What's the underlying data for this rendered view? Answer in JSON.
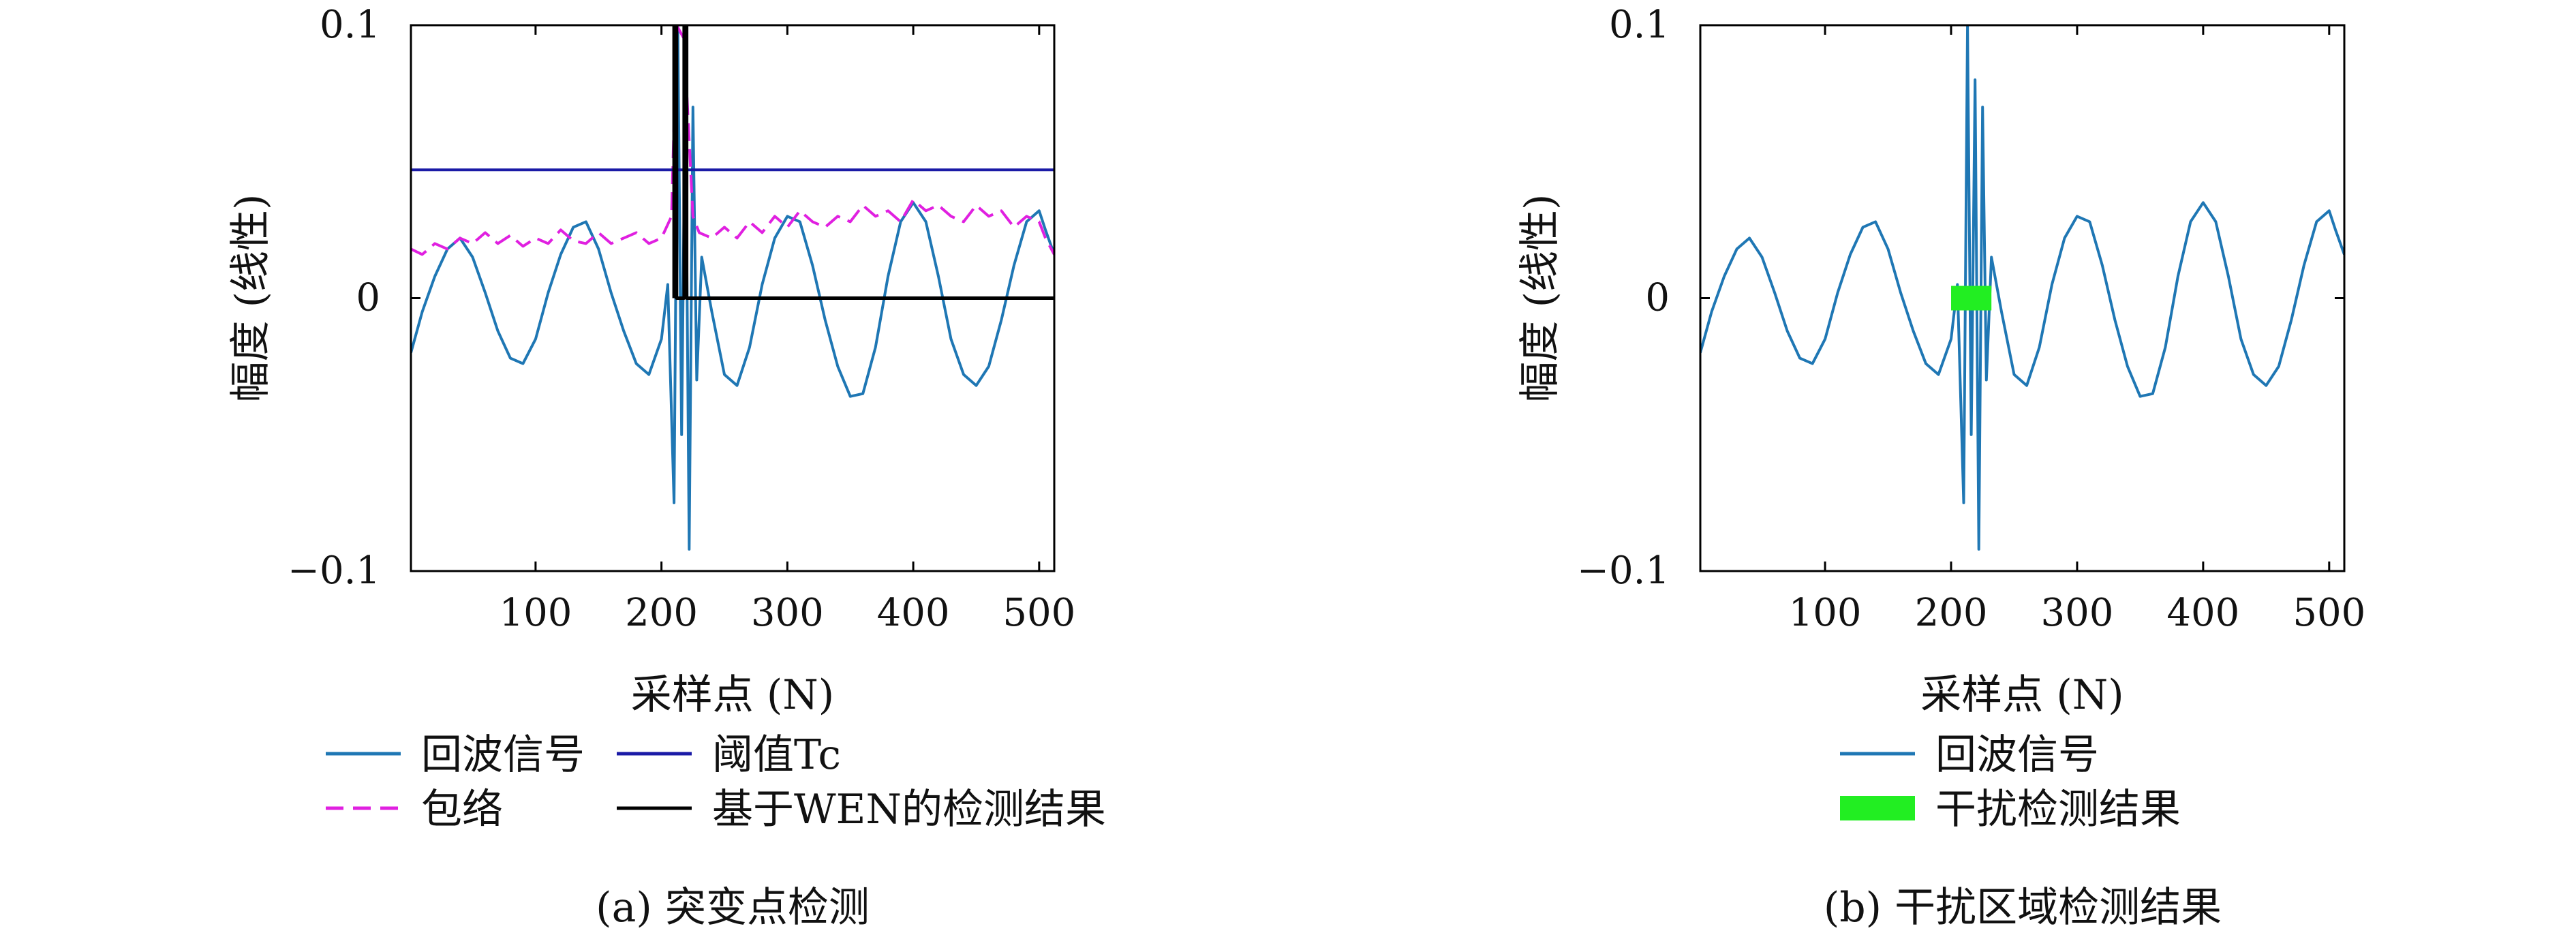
{
  "colors": {
    "signal": "#1f77b4",
    "threshold": "#1a1aa6",
    "envelope": "#e020e0",
    "detection": "#000000",
    "interference": "#22ee22"
  },
  "chart_data": [
    {
      "type": "line",
      "caption": "(a) 突变点检测",
      "xlabel": "采样点 (N)",
      "ylabel": "幅度 (线性)",
      "xlim": [
        1,
        512
      ],
      "ylim": [
        -0.1,
        0.1
      ],
      "xticks": [
        100,
        200,
        300,
        400,
        500
      ],
      "yticks": [
        -0.1,
        0,
        0.1
      ],
      "ytick_labels": [
        "−0.1",
        "0",
        "0.1"
      ],
      "legend_columns": 2,
      "series": [
        {
          "name": "回波信号",
          "style": "solid",
          "x": [
            1,
            10,
            20,
            30,
            40,
            50,
            60,
            70,
            80,
            90,
            100,
            110,
            120,
            130,
            140,
            150,
            160,
            170,
            180,
            190,
            200,
            205,
            210,
            213,
            216,
            219,
            222,
            225,
            228,
            232,
            240,
            250,
            260,
            270,
            280,
            290,
            300,
            310,
            320,
            330,
            340,
            350,
            360,
            370,
            380,
            390,
            400,
            410,
            420,
            430,
            440,
            450,
            460,
            470,
            480,
            490,
            500,
            505,
            512
          ],
          "y": [
            -0.02,
            -0.005,
            0.008,
            0.018,
            0.022,
            0.015,
            0.002,
            -0.012,
            -0.022,
            -0.024,
            -0.015,
            0.002,
            0.016,
            0.026,
            0.028,
            0.018,
            0.002,
            -0.012,
            -0.024,
            -0.028,
            -0.015,
            0.005,
            -0.075,
            0.1,
            -0.05,
            0.08,
            -0.092,
            0.07,
            -0.03,
            0.015,
            -0.005,
            -0.028,
            -0.032,
            -0.018,
            0.005,
            0.022,
            0.03,
            0.028,
            0.012,
            -0.008,
            -0.025,
            -0.036,
            -0.035,
            -0.018,
            0.008,
            0.028,
            0.035,
            0.028,
            0.008,
            -0.015,
            -0.028,
            -0.032,
            -0.025,
            -0.008,
            0.012,
            0.028,
            0.032,
            0.025,
            0.016
          ]
        },
        {
          "name": "包络",
          "style": "dashed",
          "x": [
            1,
            10,
            20,
            30,
            40,
            50,
            60,
            70,
            80,
            90,
            100,
            110,
            120,
            130,
            140,
            150,
            160,
            170,
            180,
            190,
            200,
            208,
            212,
            218,
            225,
            230,
            240,
            250,
            260,
            270,
            280,
            290,
            300,
            310,
            320,
            330,
            340,
            350,
            360,
            370,
            380,
            390,
            400,
            410,
            420,
            430,
            440,
            450,
            460,
            470,
            480,
            490,
            500,
            505,
            512
          ],
          "y": [
            0.018,
            0.016,
            0.02,
            0.018,
            0.022,
            0.02,
            0.024,
            0.02,
            0.023,
            0.019,
            0.022,
            0.02,
            0.025,
            0.021,
            0.02,
            0.024,
            0.02,
            0.022,
            0.024,
            0.02,
            0.022,
            0.03,
            0.1,
            0.095,
            0.03,
            0.024,
            0.022,
            0.026,
            0.022,
            0.028,
            0.024,
            0.03,
            0.026,
            0.032,
            0.028,
            0.026,
            0.03,
            0.028,
            0.034,
            0.03,
            0.032,
            0.028,
            0.036,
            0.032,
            0.034,
            0.03,
            0.028,
            0.034,
            0.03,
            0.032,
            0.026,
            0.03,
            0.028,
            0.022,
            0.016
          ]
        },
        {
          "name": "阈值Tc",
          "style": "solid",
          "x": [
            1,
            512
          ],
          "y": [
            0.047,
            0.047
          ]
        },
        {
          "name": "基于WEN的检测结果",
          "style": "solid",
          "x": [
            210,
            210,
            212,
            212,
            218,
            218,
            220,
            220,
            222,
            222,
            512
          ],
          "y": [
            0,
            0.1,
            0.1,
            0,
            0,
            0.1,
            0.1,
            0,
            0,
            0,
            0
          ]
        }
      ]
    },
    {
      "type": "line",
      "caption": "(b) 干扰区域检测结果",
      "xlabel": "采样点 (N)",
      "ylabel": "幅度 (线性)",
      "xlim": [
        1,
        512
      ],
      "ylim": [
        -0.1,
        0.1
      ],
      "xticks": [
        100,
        200,
        300,
        400,
        500
      ],
      "yticks": [
        -0.1,
        0,
        0.1
      ],
      "ytick_labels": [
        "−0.1",
        "0",
        "0.1"
      ],
      "legend_columns": 1,
      "series": [
        {
          "name": "回波信号",
          "style": "solid",
          "x": [
            1,
            10,
            20,
            30,
            40,
            50,
            60,
            70,
            80,
            90,
            100,
            110,
            120,
            130,
            140,
            150,
            160,
            170,
            180,
            190,
            200,
            205,
            210,
            213,
            216,
            219,
            222,
            225,
            228,
            232,
            240,
            250,
            260,
            270,
            280,
            290,
            300,
            310,
            320,
            330,
            340,
            350,
            360,
            370,
            380,
            390,
            400,
            410,
            420,
            430,
            440,
            450,
            460,
            470,
            480,
            490,
            500,
            505,
            512
          ],
          "y": [
            -0.02,
            -0.005,
            0.008,
            0.018,
            0.022,
            0.015,
            0.002,
            -0.012,
            -0.022,
            -0.024,
            -0.015,
            0.002,
            0.016,
            0.026,
            0.028,
            0.018,
            0.002,
            -0.012,
            -0.024,
            -0.028,
            -0.015,
            0.005,
            -0.075,
            0.1,
            -0.05,
            0.08,
            -0.092,
            0.07,
            -0.03,
            0.015,
            -0.005,
            -0.028,
            -0.032,
            -0.018,
            0.005,
            0.022,
            0.03,
            0.028,
            0.012,
            -0.008,
            -0.025,
            -0.036,
            -0.035,
            -0.018,
            0.008,
            0.028,
            0.035,
            0.028,
            0.008,
            -0.015,
            -0.028,
            -0.032,
            -0.025,
            -0.008,
            0.012,
            0.028,
            0.032,
            0.025,
            0.016
          ]
        },
        {
          "name": "干扰检测结果",
          "style": "band",
          "x": [
            200,
            232
          ],
          "y": [
            0,
            0
          ]
        }
      ]
    }
  ]
}
